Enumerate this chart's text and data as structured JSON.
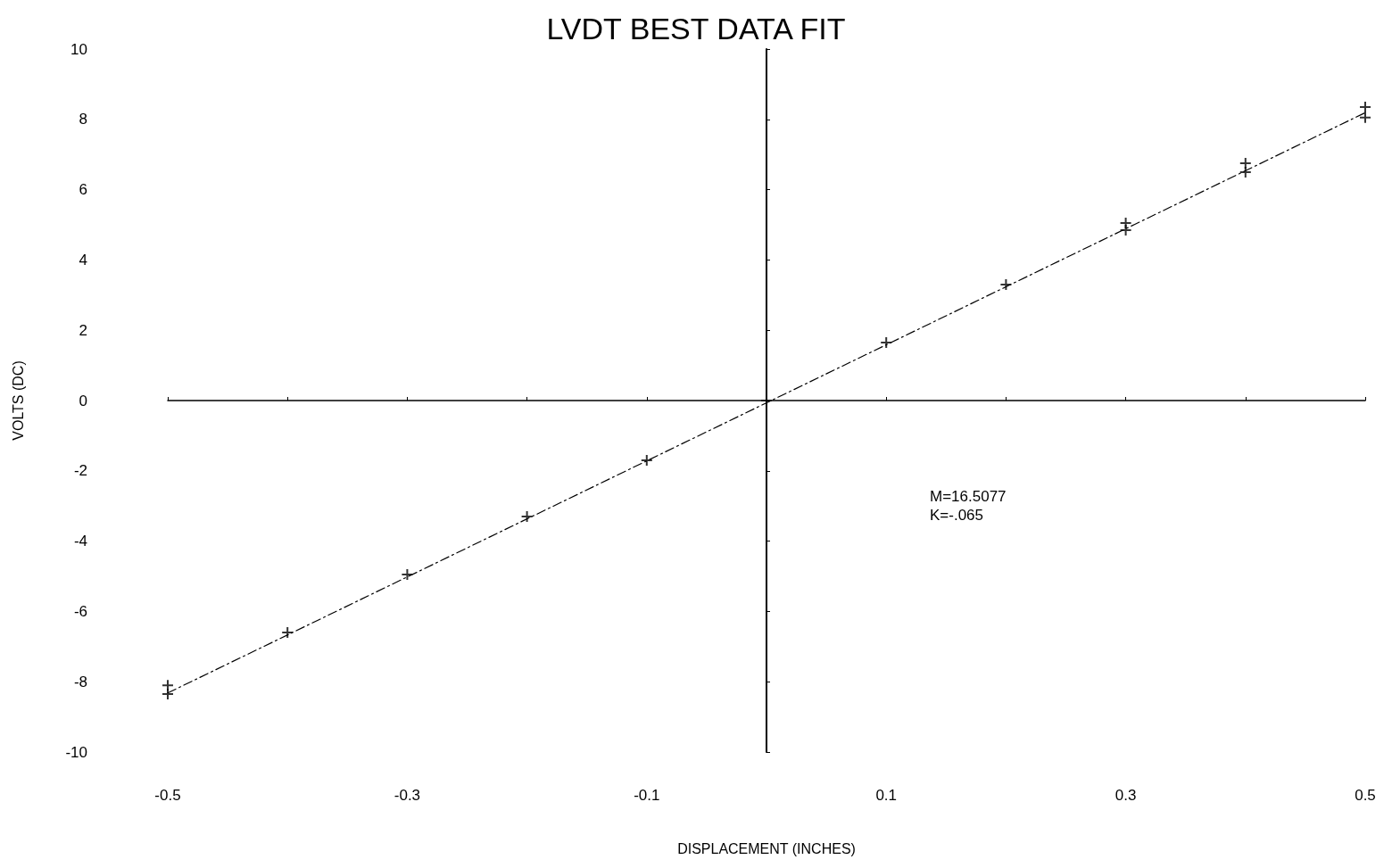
{
  "chart_data": {
    "type": "scatter",
    "title": "LVDT BEST DATA FIT",
    "xlabel": "DISPLACEMENT (INCHES)",
    "ylabel": "VOLTS (DC)",
    "annotations": [
      "M=16.5077",
      "K=-.065"
    ],
    "xlim": [
      -0.5,
      0.5
    ],
    "xticks": [
      -0.5,
      {
        "value": -0.4,
        "label": null
      },
      -0.3,
      {
        "value": -0.2,
        "label": null
      },
      -0.1,
      {
        "value": 0,
        "label": null
      },
      0.1,
      {
        "value": 0.2,
        "label": null
      },
      0.3,
      {
        "value": 0.4,
        "label": null
      },
      0.5
    ],
    "ylim": [
      -10,
      10
    ],
    "yticks": [
      -10,
      -8,
      -6,
      -4,
      -2,
      0,
      2,
      4,
      6,
      8,
      10
    ],
    "grid": false,
    "series": [
      {
        "color": "#000000",
        "marker": "cross",
        "x": [
          -0.5,
          -0.5,
          -0.4,
          -0.3,
          -0.2,
          -0.1,
          0,
          0.1,
          0.2,
          0.3,
          0.3,
          0.4,
          0.4,
          0.5,
          0.5
        ],
        "values": [
          -8.1,
          -8.35,
          -6.6,
          -4.95,
          -3.3,
          -1.7,
          0,
          1.65,
          3.3,
          5.05,
          4.85,
          6.75,
          6.5,
          8.35,
          8.05
        ]
      },
      {
        "type": "line",
        "color": "#000000",
        "line_style": "dashed",
        "marker": "none",
        "x": [
          -0.5,
          0.5
        ],
        "values": [
          -8.32,
          8.19
        ]
      }
    ]
  }
}
